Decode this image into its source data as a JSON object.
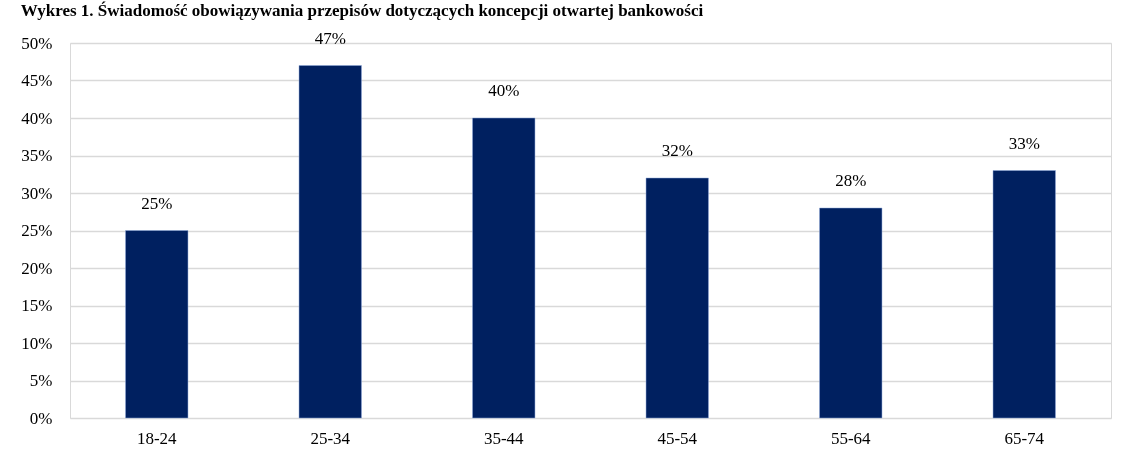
{
  "chart_data": {
    "type": "bar",
    "title": "Wykres 1. Świadomość obowiązywania przepisów dotyczących koncepcji otwartej bankowości",
    "categories": [
      "18-24",
      "25-34",
      "35-44",
      "45-54",
      "55-64",
      "65-74"
    ],
    "values": [
      25,
      47,
      40,
      32,
      28,
      33
    ],
    "value_labels": [
      "25%",
      "47%",
      "40%",
      "32%",
      "28%",
      "33%"
    ],
    "color": "#002060",
    "ylim": [
      0,
      50
    ],
    "yticks": [
      {
        "value": 0,
        "label": "0%"
      },
      {
        "value": 5,
        "label": "5%"
      },
      {
        "value": 10,
        "label": "10%"
      },
      {
        "value": 15,
        "label": "15%"
      },
      {
        "value": 20,
        "label": "20%"
      },
      {
        "value": 25,
        "label": "25%"
      },
      {
        "value": 30,
        "label": "30%"
      },
      {
        "value": 35,
        "label": "35%"
      },
      {
        "value": 40,
        "label": "40%"
      },
      {
        "value": 45,
        "label": "45%"
      },
      {
        "value": 50,
        "label": "50%"
      }
    ],
    "grid": "y"
  }
}
